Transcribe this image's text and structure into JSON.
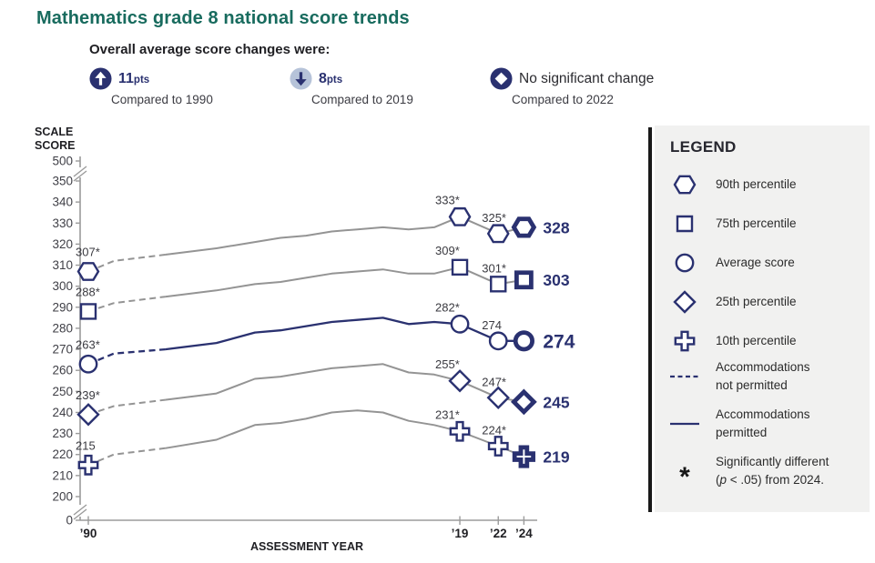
{
  "page": {
    "title": "Mathematics grade 8 national score trends"
  },
  "summary": {
    "heading": "Overall average score changes were:",
    "items": [
      {
        "icon": "up-arrow-circle-icon",
        "value": "11",
        "unit": "pts",
        "caption": "Compared to 1990"
      },
      {
        "icon": "down-arrow-circle-icon",
        "value": "8",
        "unit": "pts",
        "caption": "Compared to 2019"
      },
      {
        "icon": "no-change-diamond-icon",
        "value": "No significant change",
        "unit": "",
        "caption": "Compared to 2022"
      }
    ]
  },
  "chart_data": {
    "type": "line",
    "title": "Mathematics grade 8 national score trends",
    "xlabel": "ASSESSMENT YEAR",
    "ylabel": "SCALE SCORE",
    "ylim": [
      0,
      500
    ],
    "y_breaks": [
      [
        0,
        200
      ],
      [
        350,
        500
      ]
    ],
    "y_ticks": [
      0,
      200,
      210,
      220,
      230,
      240,
      250,
      260,
      270,
      280,
      290,
      300,
      310,
      320,
      330,
      340,
      350,
      500
    ],
    "x_ticks": [
      {
        "year": 1990,
        "label": "’90"
      },
      {
        "year": 2019,
        "label": "’19"
      },
      {
        "year": 2022,
        "label": "’22"
      },
      {
        "year": 2024,
        "label": "’24"
      }
    ],
    "years": [
      1990,
      1992,
      1996,
      2000,
      2003,
      2005,
      2007,
      2009,
      2011,
      2013,
      2015,
      2017,
      2019,
      2022,
      2024
    ],
    "dashed_until_year": 1996,
    "marker_years": [
      1990,
      2019,
      2022,
      2024
    ],
    "series": [
      {
        "name": "90th percentile",
        "marker": "hexagon",
        "line": "gray",
        "values": [
          307,
          312,
          315,
          318,
          321,
          323,
          324,
          326,
          327,
          328,
          327,
          328,
          333,
          325,
          328
        ],
        "point_labels": [
          {
            "year": 1990,
            "text": "307*"
          },
          {
            "year": 2019,
            "text": "333*"
          },
          {
            "year": 2022,
            "text": "325*"
          }
        ],
        "end_label": "328"
      },
      {
        "name": "75th percentile",
        "marker": "square",
        "line": "gray",
        "values": [
          288,
          292,
          295,
          298,
          301,
          302,
          304,
          306,
          307,
          308,
          306,
          306,
          309,
          301,
          303
        ],
        "point_labels": [
          {
            "year": 1990,
            "text": "288*"
          },
          {
            "year": 2019,
            "text": "309*"
          },
          {
            "year": 2022,
            "text": "301*"
          }
        ],
        "end_label": "303"
      },
      {
        "name": "Average score",
        "marker": "circle",
        "line": "navy",
        "emphasis": true,
        "values": [
          263,
          268,
          270,
          273,
          278,
          279,
          281,
          283,
          284,
          285,
          282,
          283,
          282,
          274,
          274
        ],
        "point_labels": [
          {
            "year": 1990,
            "text": "263*"
          },
          {
            "year": 2019,
            "text": "282*"
          },
          {
            "year": 2022,
            "text": "274"
          }
        ],
        "end_label": "274"
      },
      {
        "name": "25th percentile",
        "marker": "diamond",
        "line": "gray",
        "values": [
          239,
          243,
          246,
          249,
          256,
          257,
          259,
          261,
          262,
          263,
          259,
          258,
          255,
          247,
          245
        ],
        "point_labels": [
          {
            "year": 1990,
            "text": "239*"
          },
          {
            "year": 2019,
            "text": "255*"
          },
          {
            "year": 2022,
            "text": "247*"
          }
        ],
        "end_label": "245"
      },
      {
        "name": "10th percentile",
        "marker": "plus",
        "line": "gray",
        "values": [
          215,
          220,
          223,
          227,
          234,
          235,
          237,
          240,
          241,
          240,
          236,
          234,
          231,
          224,
          219
        ],
        "point_labels": [
          {
            "year": 1990,
            "text": "215"
          },
          {
            "year": 2019,
            "text": "231*"
          },
          {
            "year": 2022,
            "text": "224*"
          }
        ],
        "end_label": "219"
      }
    ]
  },
  "legend": {
    "title": "LEGEND",
    "items": [
      {
        "type": "marker",
        "marker": "hexagon",
        "label": "90th percentile"
      },
      {
        "type": "marker",
        "marker": "square",
        "label": "75th percentile"
      },
      {
        "type": "marker",
        "marker": "circle",
        "label": "Average score"
      },
      {
        "type": "marker",
        "marker": "diamond",
        "label": "25th percentile"
      },
      {
        "type": "marker",
        "marker": "plus",
        "label": "10th percentile"
      },
      {
        "type": "dashed-line",
        "label": "Accommodations|not permitted"
      },
      {
        "type": "solid-line",
        "label": "Accommodations|permitted"
      },
      {
        "type": "asterisk",
        "symbol": "*",
        "label": "Significantly different|(*p* < .05) from 2024."
      }
    ]
  },
  "colors": {
    "navy": "#2a3170",
    "gray_line": "#949494",
    "axis": "#9b9b9b",
    "tick_label": "#3f3f46",
    "point_label": "#3a3a40",
    "text_dark": "#1f1f23",
    "title_teal": "#186b5e",
    "legend_bg": "#f1f1f0",
    "legend_bar": "#191919",
    "down_badge_bg": "#b6c3d9"
  }
}
